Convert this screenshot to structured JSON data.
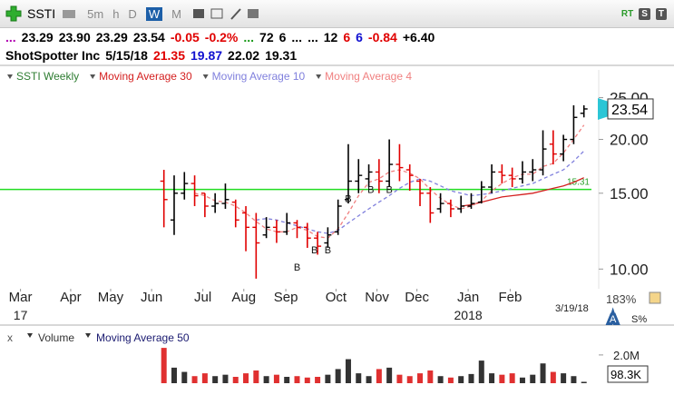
{
  "toolbar": {
    "symbol": "SSTI",
    "periods": [
      "5m",
      "h",
      "D",
      "W",
      "M"
    ],
    "active_period": 3,
    "right": [
      "RT",
      "S",
      "T"
    ]
  },
  "quote": [
    {
      "text": "...",
      "color": "#b000b0"
    },
    {
      "text": "23.29",
      "color": "#000000"
    },
    {
      "text": "23.90",
      "color": "#000000"
    },
    {
      "text": "23.29",
      "color": "#000000"
    },
    {
      "text": "23.54",
      "color": "#000000"
    },
    {
      "text": "-0.05",
      "color": "#e00000"
    },
    {
      "text": "-0.2%",
      "color": "#e00000"
    },
    {
      "text": "...",
      "color": "#1a9a1a"
    },
    {
      "text": "72",
      "color": "#000000"
    },
    {
      "text": "6",
      "color": "#000000"
    },
    {
      "text": "...",
      "color": "#000000"
    },
    {
      "text": "...",
      "color": "#000000"
    },
    {
      "text": "12",
      "color": "#000000"
    },
    {
      "text": "6",
      "color": "#e00000"
    },
    {
      "text": "6",
      "color": "#1010d0"
    },
    {
      "text": "-0.84",
      "color": "#e00000"
    },
    {
      "text": "+6.40",
      "color": "#000000"
    }
  ],
  "info": [
    {
      "text": "ShotSpotter Inc",
      "color": "#000000"
    },
    {
      "text": "5/15/18",
      "color": "#000000"
    },
    {
      "text": "21.35",
      "color": "#e00000"
    },
    {
      "text": "19.87",
      "color": "#1010d0"
    },
    {
      "text": "22.02",
      "color": "#000000"
    },
    {
      "text": "19.31",
      "color": "#000000"
    }
  ],
  "chart_data": [
    {
      "type": "ohlc",
      "name": "SSTI Weekly",
      "name_color": "#2e7d32",
      "up_color": "#000000",
      "down_color": "#e00000",
      "log_scale": true,
      "grid": false,
      "x": [
        14,
        15,
        16,
        17,
        18,
        19,
        20,
        21,
        22,
        23,
        24,
        25,
        26,
        27,
        28,
        29,
        30,
        31,
        32,
        33,
        34,
        35,
        36,
        37,
        38,
        39,
        40,
        41,
        42,
        43,
        44,
        45,
        46,
        47,
        48,
        49,
        50,
        51,
        52,
        53,
        54,
        55
      ],
      "open": [
        16,
        13,
        15,
        15.8,
        15,
        14,
        14.2,
        14.3,
        13.5,
        12.5,
        12,
        12.5,
        12.2,
        12.8,
        12.5,
        11.8,
        11.5,
        12.2,
        14.5,
        16,
        16.2,
        16.8,
        16,
        17.5,
        17,
        16,
        15,
        13.8,
        14.2,
        13.8,
        14,
        14.3,
        15.5,
        16.8,
        16.5,
        16.2,
        16.8,
        17,
        19.5,
        18.5,
        20,
        23
      ],
      "high": [
        17,
        16.5,
        16.8,
        16.5,
        15,
        15,
        15.8,
        14.5,
        14,
        13.5,
        13.2,
        13,
        13.5,
        13,
        12.8,
        12.2,
        12.5,
        14.5,
        19.5,
        18,
        17.5,
        18,
        20,
        19.5,
        17.5,
        16.2,
        15.5,
        15,
        14.5,
        14.8,
        15,
        16,
        17.5,
        17.5,
        17.2,
        17.8,
        18,
        21,
        21,
        20.5,
        24,
        24
      ],
      "low": [
        12.5,
        12,
        14.5,
        14,
        13.2,
        13.5,
        13.8,
        12.5,
        11,
        9.5,
        11.8,
        11.5,
        12,
        11.8,
        11.2,
        10.8,
        11.2,
        12,
        14.2,
        15,
        15.5,
        15,
        15.5,
        16,
        15.2,
        14,
        12.8,
        13.5,
        13.2,
        13.5,
        13.8,
        14.2,
        15,
        15.8,
        15.5,
        15.8,
        16,
        16.5,
        17.5,
        17.8,
        19.5,
        22.5
      ],
      "close": [
        14.5,
        15,
        15.8,
        14.8,
        14,
        14.2,
        14.5,
        13,
        12.5,
        11.5,
        12.5,
        12.2,
        12.8,
        12.5,
        11.8,
        11.3,
        12,
        14,
        16,
        16.5,
        16.8,
        16,
        17.5,
        17.2,
        16.5,
        15,
        13.5,
        14.2,
        13.8,
        14,
        14.2,
        15.5,
        16.8,
        16.5,
        16.2,
        16.8,
        17,
        19,
        18.5,
        20,
        22.5,
        23.54
      ],
      "series": [
        {
          "name": "Moving Average 30",
          "color": "#d42020",
          "dashed": false,
          "values": [
            null,
            null,
            null,
            null,
            null,
            null,
            null,
            null,
            null,
            null,
            null,
            null,
            null,
            null,
            null,
            null,
            null,
            null,
            null,
            null,
            null,
            null,
            null,
            null,
            null,
            null,
            null,
            null,
            null,
            14,
            14.1,
            14.3,
            14.5,
            14.7,
            14.8,
            14.9,
            15,
            15.2,
            15.4,
            15.6,
            15.9,
            16.3
          ]
        },
        {
          "name": "Moving Average 10",
          "color": "#8080dd",
          "dashed": true,
          "values": [
            null,
            null,
            null,
            null,
            null,
            null,
            null,
            null,
            null,
            13,
            13.1,
            13,
            12.8,
            12.6,
            12.4,
            12.2,
            12.1,
            12.3,
            12.8,
            13.3,
            13.8,
            14.3,
            14.8,
            15.4,
            15.9,
            16.2,
            16,
            15.6,
            15.2,
            15,
            14.8,
            14.9,
            15,
            15.2,
            15.4,
            15.6,
            15.8,
            16.2,
            16.6,
            17,
            17.8,
            18.8
          ]
        },
        {
          "name": "Moving Average 4",
          "color": "#f08080",
          "dashed": true,
          "values": [
            null,
            null,
            null,
            15,
            14.8,
            14.4,
            14.3,
            14,
            13.5,
            12.9,
            12.4,
            12.2,
            12.2,
            12.5,
            12.3,
            11.9,
            11.8,
            12.4,
            13.5,
            14.8,
            15.9,
            16.2,
            16.8,
            17,
            16.7,
            16.2,
            15.3,
            14.6,
            14.1,
            13.8,
            14,
            14.4,
            15.2,
            15.8,
            16.3,
            16.6,
            16.6,
            17.3,
            17.6,
            18.6,
            20,
            21.6
          ]
        }
      ],
      "hlines": [
        {
          "value": 15.31,
          "color": "#22dd22"
        }
      ],
      "annotations": [
        {
          "text": "B",
          "x": 27,
          "y": 10.1
        },
        {
          "text": "B",
          "x": 28.7,
          "y": 11.1
        },
        {
          "text": "B",
          "x": 30,
          "y": 11.1
        },
        {
          "text": "B",
          "x": 32,
          "y": 14.6
        },
        {
          "text": "B",
          "x": 34.2,
          "y": 15.3
        },
        {
          "text": "B",
          "x": 36,
          "y": 15.3
        }
      ],
      "xlim": [
        -2,
        56
      ],
      "xticks": [
        {
          "value": 0,
          "label": "Mar"
        },
        {
          "value": 4.9,
          "label": "Apr"
        },
        {
          "value": 8.8,
          "label": "May"
        },
        {
          "value": 12.8,
          "label": "Jun"
        },
        {
          "value": 17.8,
          "label": "Jul"
        },
        {
          "value": 21.8,
          "label": "Aug"
        },
        {
          "value": 25.9,
          "label": "Sep"
        },
        {
          "value": 30.8,
          "label": "Oct"
        },
        {
          "value": 34.8,
          "label": "Nov"
        },
        {
          "value": 38.7,
          "label": "Dec"
        },
        {
          "value": 43.7,
          "label": "Jan"
        },
        {
          "value": 47.8,
          "label": "Feb"
        }
      ],
      "year_labels": [
        {
          "value": 0,
          "label": "17"
        },
        {
          "value": 43.7,
          "label": "2018"
        }
      ],
      "ylim": [
        9,
        29
      ],
      "yticks": [
        {
          "value": 10,
          "label": "10.00"
        },
        {
          "value": 15,
          "label": "15.00"
        },
        {
          "value": 20,
          "label": "20.00"
        },
        {
          "value": 25,
          "label": "25.00"
        }
      ],
      "date_label": "3/19/18",
      "zoom_label": "183%",
      "scale_buttons": [
        "A",
        "S%"
      ]
    },
    {
      "type": "bar",
      "name": "Volume",
      "close_button": "x",
      "indicators": [
        "Moving Average 50"
      ],
      "up_color": "#333333",
      "down_color": "#e03030",
      "x": [
        14,
        15,
        16,
        17,
        18,
        19,
        20,
        21,
        22,
        23,
        24,
        25,
        26,
        27,
        28,
        29,
        30,
        31,
        32,
        33,
        34,
        35,
        36,
        37,
        38,
        39,
        40,
        41,
        42,
        43,
        44,
        45,
        46,
        47,
        48,
        49,
        50,
        51,
        52,
        53,
        54,
        55
      ],
      "values": [
        2500000,
        1100000,
        800000,
        500000,
        700000,
        500000,
        600000,
        450000,
        700000,
        900000,
        500000,
        600000,
        450000,
        500000,
        400000,
        450000,
        600000,
        1000000,
        1700000,
        700000,
        500000,
        1000000,
        1100000,
        600000,
        500000,
        700000,
        900000,
        500000,
        400000,
        500000,
        650000,
        1600000,
        700000,
        600000,
        700000,
        400000,
        600000,
        1400000,
        800000,
        700000,
        500000,
        98300
      ],
      "value_labels": [
        null,
        null,
        null,
        null,
        null,
        null,
        null,
        null,
        null,
        null,
        null,
        null,
        null,
        null,
        null,
        null,
        null,
        null,
        null,
        null,
        null,
        null,
        null,
        null,
        null,
        null,
        null,
        null,
        null,
        null,
        null,
        null,
        null,
        null,
        null,
        null,
        null,
        null,
        null,
        null,
        null,
        "98.3K"
      ],
      "xlim": [
        -2,
        56
      ],
      "ylim": [
        0,
        2700000
      ],
      "yticks": [
        {
          "value": 2000000,
          "label": "2.0M"
        }
      ]
    }
  ]
}
